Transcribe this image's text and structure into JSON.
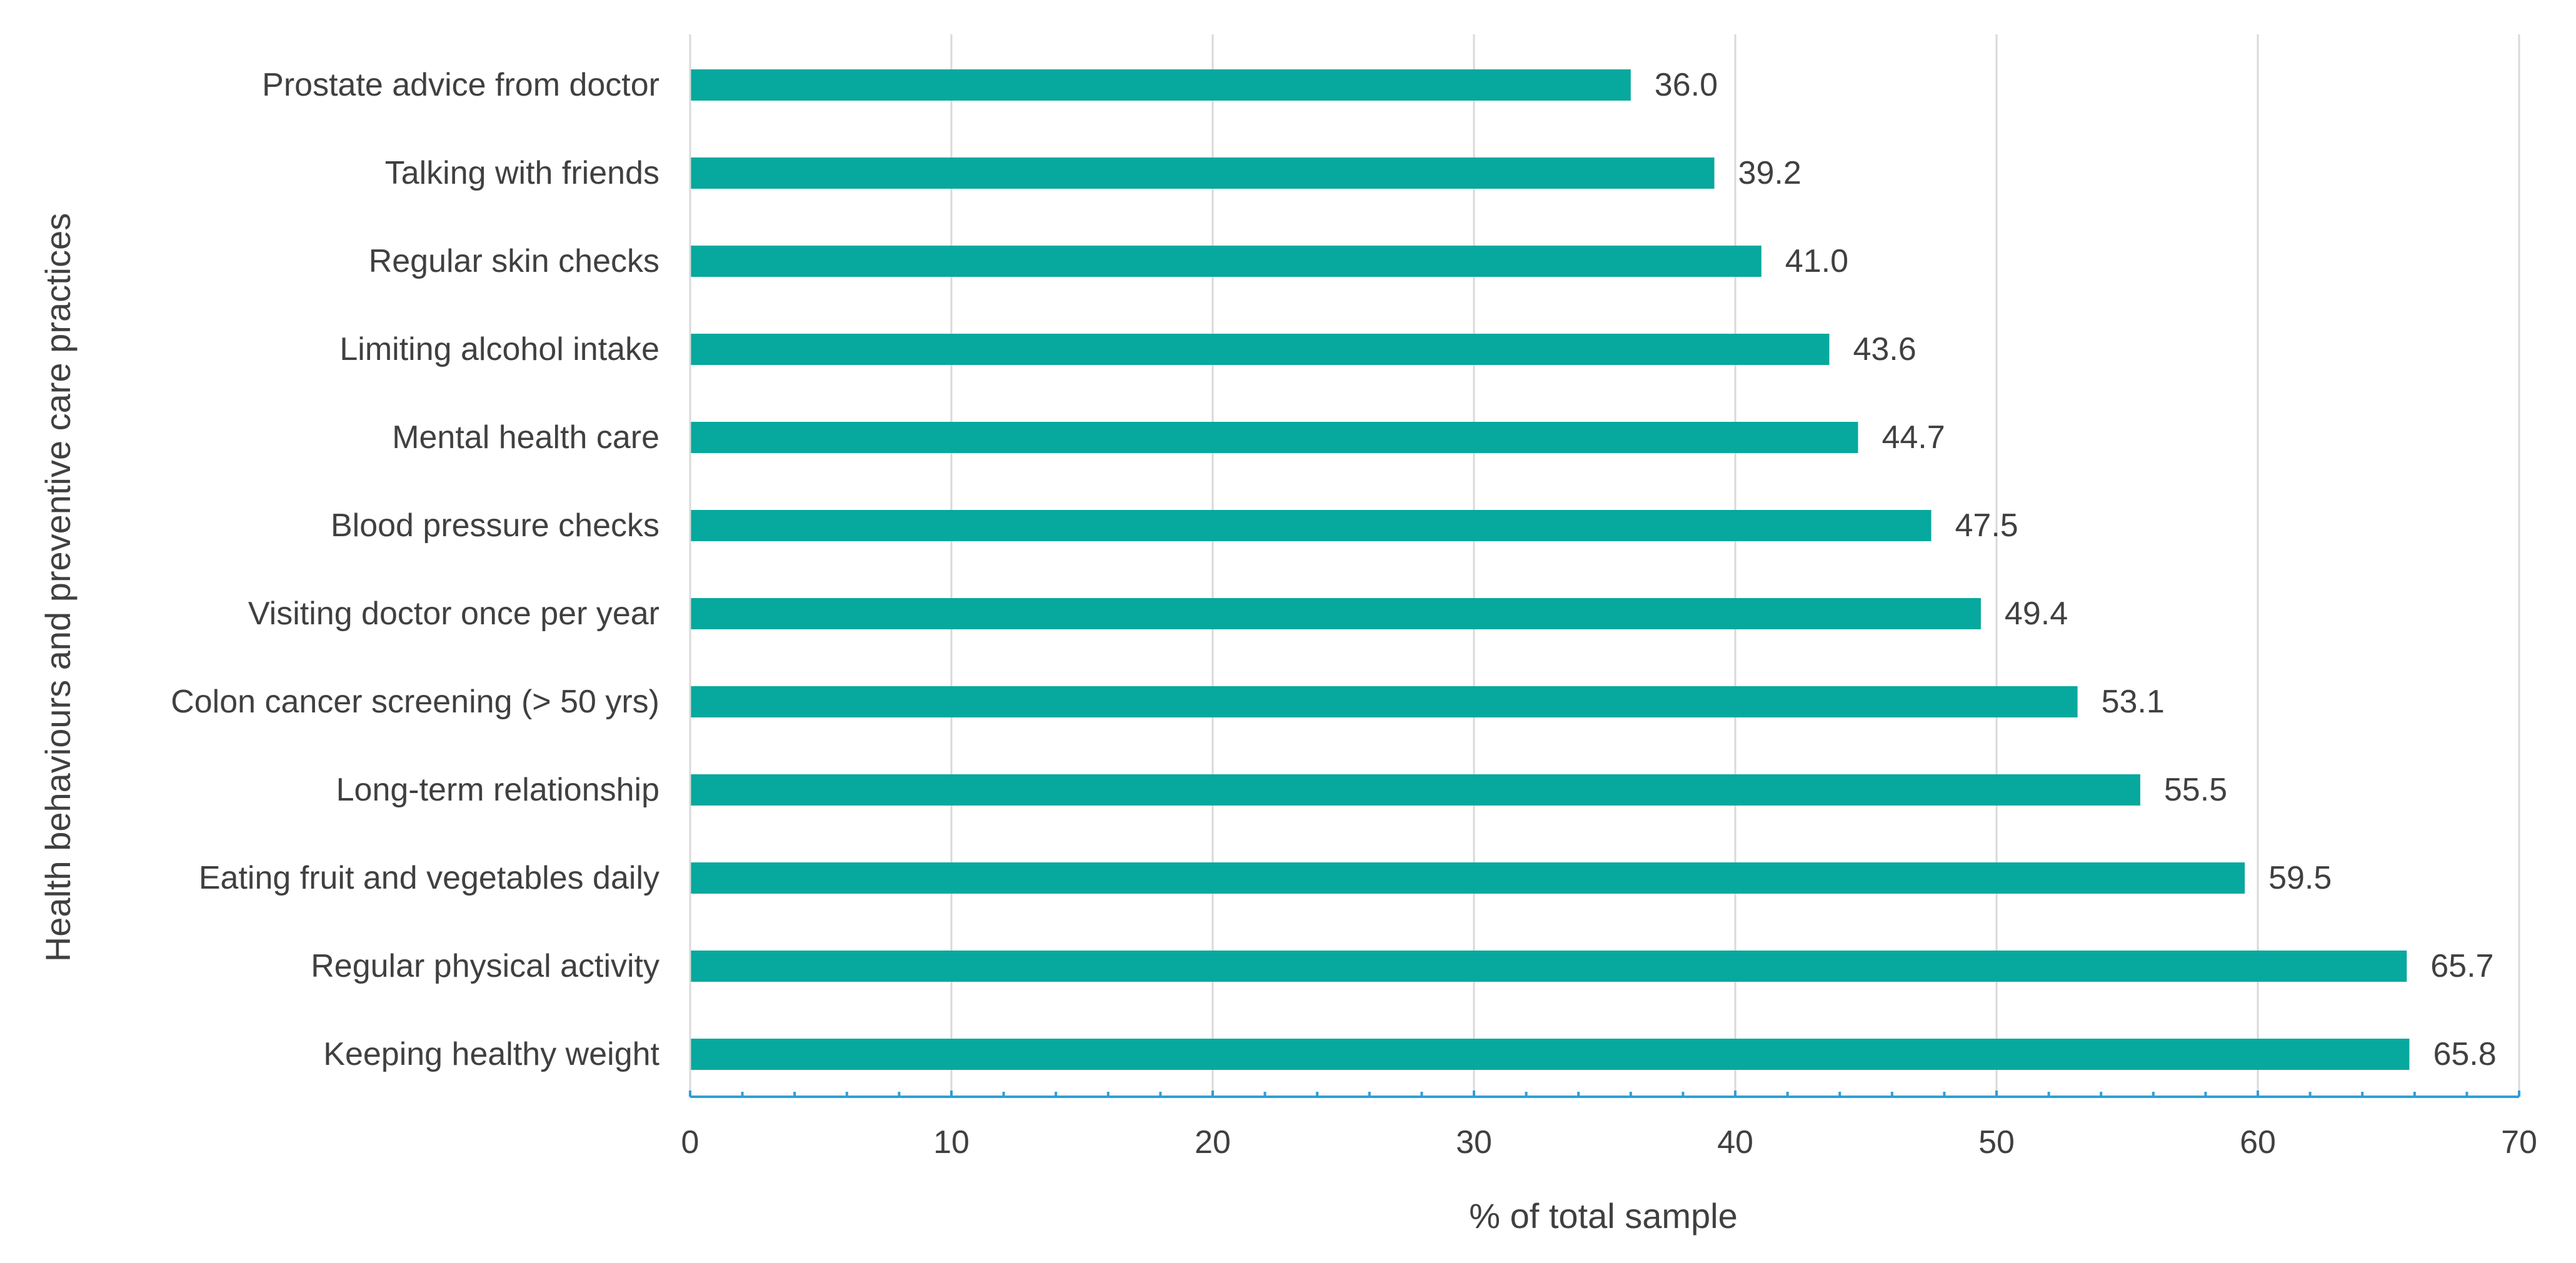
{
  "chart_data": {
    "type": "bar",
    "orientation": "horizontal",
    "title": "",
    "xlabel": "% of total sample",
    "ylabel": "Health behaviours and preventive care practices",
    "xlim": [
      0,
      70
    ],
    "xticks": [
      0,
      10,
      20,
      30,
      40,
      50,
      60,
      70
    ],
    "grid": "vertical",
    "legend": "none",
    "bar_color": "#07A89E",
    "axis_color": "#2E9FD8",
    "grid_color": "#D9D9D9",
    "categories": [
      "Prostate advice from doctor",
      "Talking with friends",
      "Regular skin checks",
      "Limiting alcohol intake",
      "Mental health care",
      "Blood pressure checks",
      "Visiting doctor once per year",
      "Colon cancer screening (> 50 yrs)",
      "Long-term relationship",
      "Eating fruit and vegetables daily",
      "Regular physical activity",
      "Keeping healthy weight"
    ],
    "values": [
      36.0,
      39.2,
      41.0,
      43.6,
      44.7,
      47.5,
      49.4,
      53.1,
      55.5,
      59.5,
      65.7,
      65.8
    ],
    "value_labels": [
      "36.0",
      "39.2",
      "41.0",
      "43.6",
      "44.7",
      "47.5",
      "49.4",
      "53.1",
      "55.5",
      "59.5",
      "65.7",
      "65.8"
    ]
  }
}
